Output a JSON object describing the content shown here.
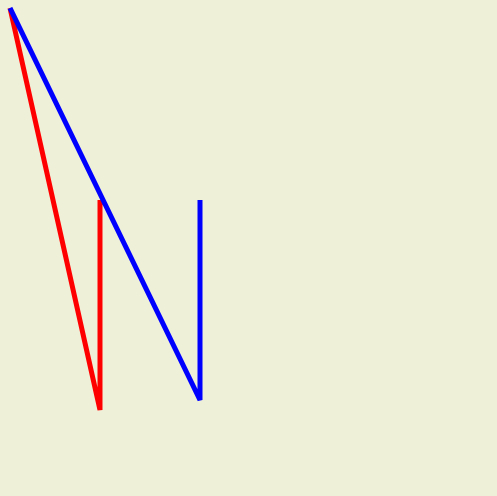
{
  "canvas": {
    "background": "#eff0d8"
  },
  "polylines": [
    {
      "name": "red-polyline",
      "stroke": "#ff0000",
      "point_count": 4
    },
    {
      "name": "blue-polyline",
      "stroke": "#0000ff",
      "point_count": 4
    }
  ]
}
